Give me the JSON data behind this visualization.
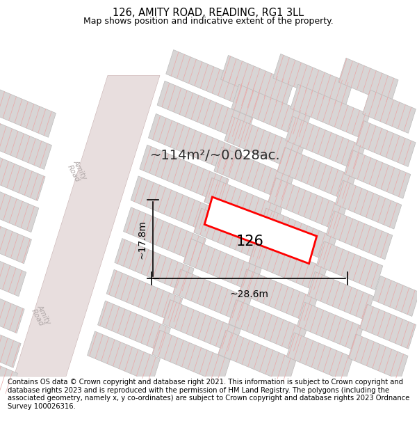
{
  "title": "126, AMITY ROAD, READING, RG1 3LL",
  "subtitle": "Map shows position and indicative extent of the property.",
  "area_label": "~114m²/~0.028ac.",
  "property_number": "126",
  "dim_width": "~28.6m",
  "dim_height": "~17.8m",
  "footer": "Contains OS data © Crown copyright and database right 2021. This information is subject to Crown copyright and database rights 2023 and is reproduced with the permission of HM Land Registry. The polygons (including the associated geometry, namely x, y co-ordinates) are subject to Crown copyright and database rights 2023 Ordnance Survey 100026316.",
  "map_bg": "#f0eded",
  "road_fill": "#e8dede",
  "bld_fill": "#d8d5d5",
  "bld_edge": "#bbbbbb",
  "hatch_col": "#e8aaaa",
  "road_label_col": "#b0a8a8",
  "property_edge": "#ff0000",
  "title_fontsize": 10.5,
  "subtitle_fontsize": 9,
  "footer_fontsize": 7.2,
  "area_label_fontsize": 14,
  "prop_num_fontsize": 15,
  "dim_fontsize": 10
}
